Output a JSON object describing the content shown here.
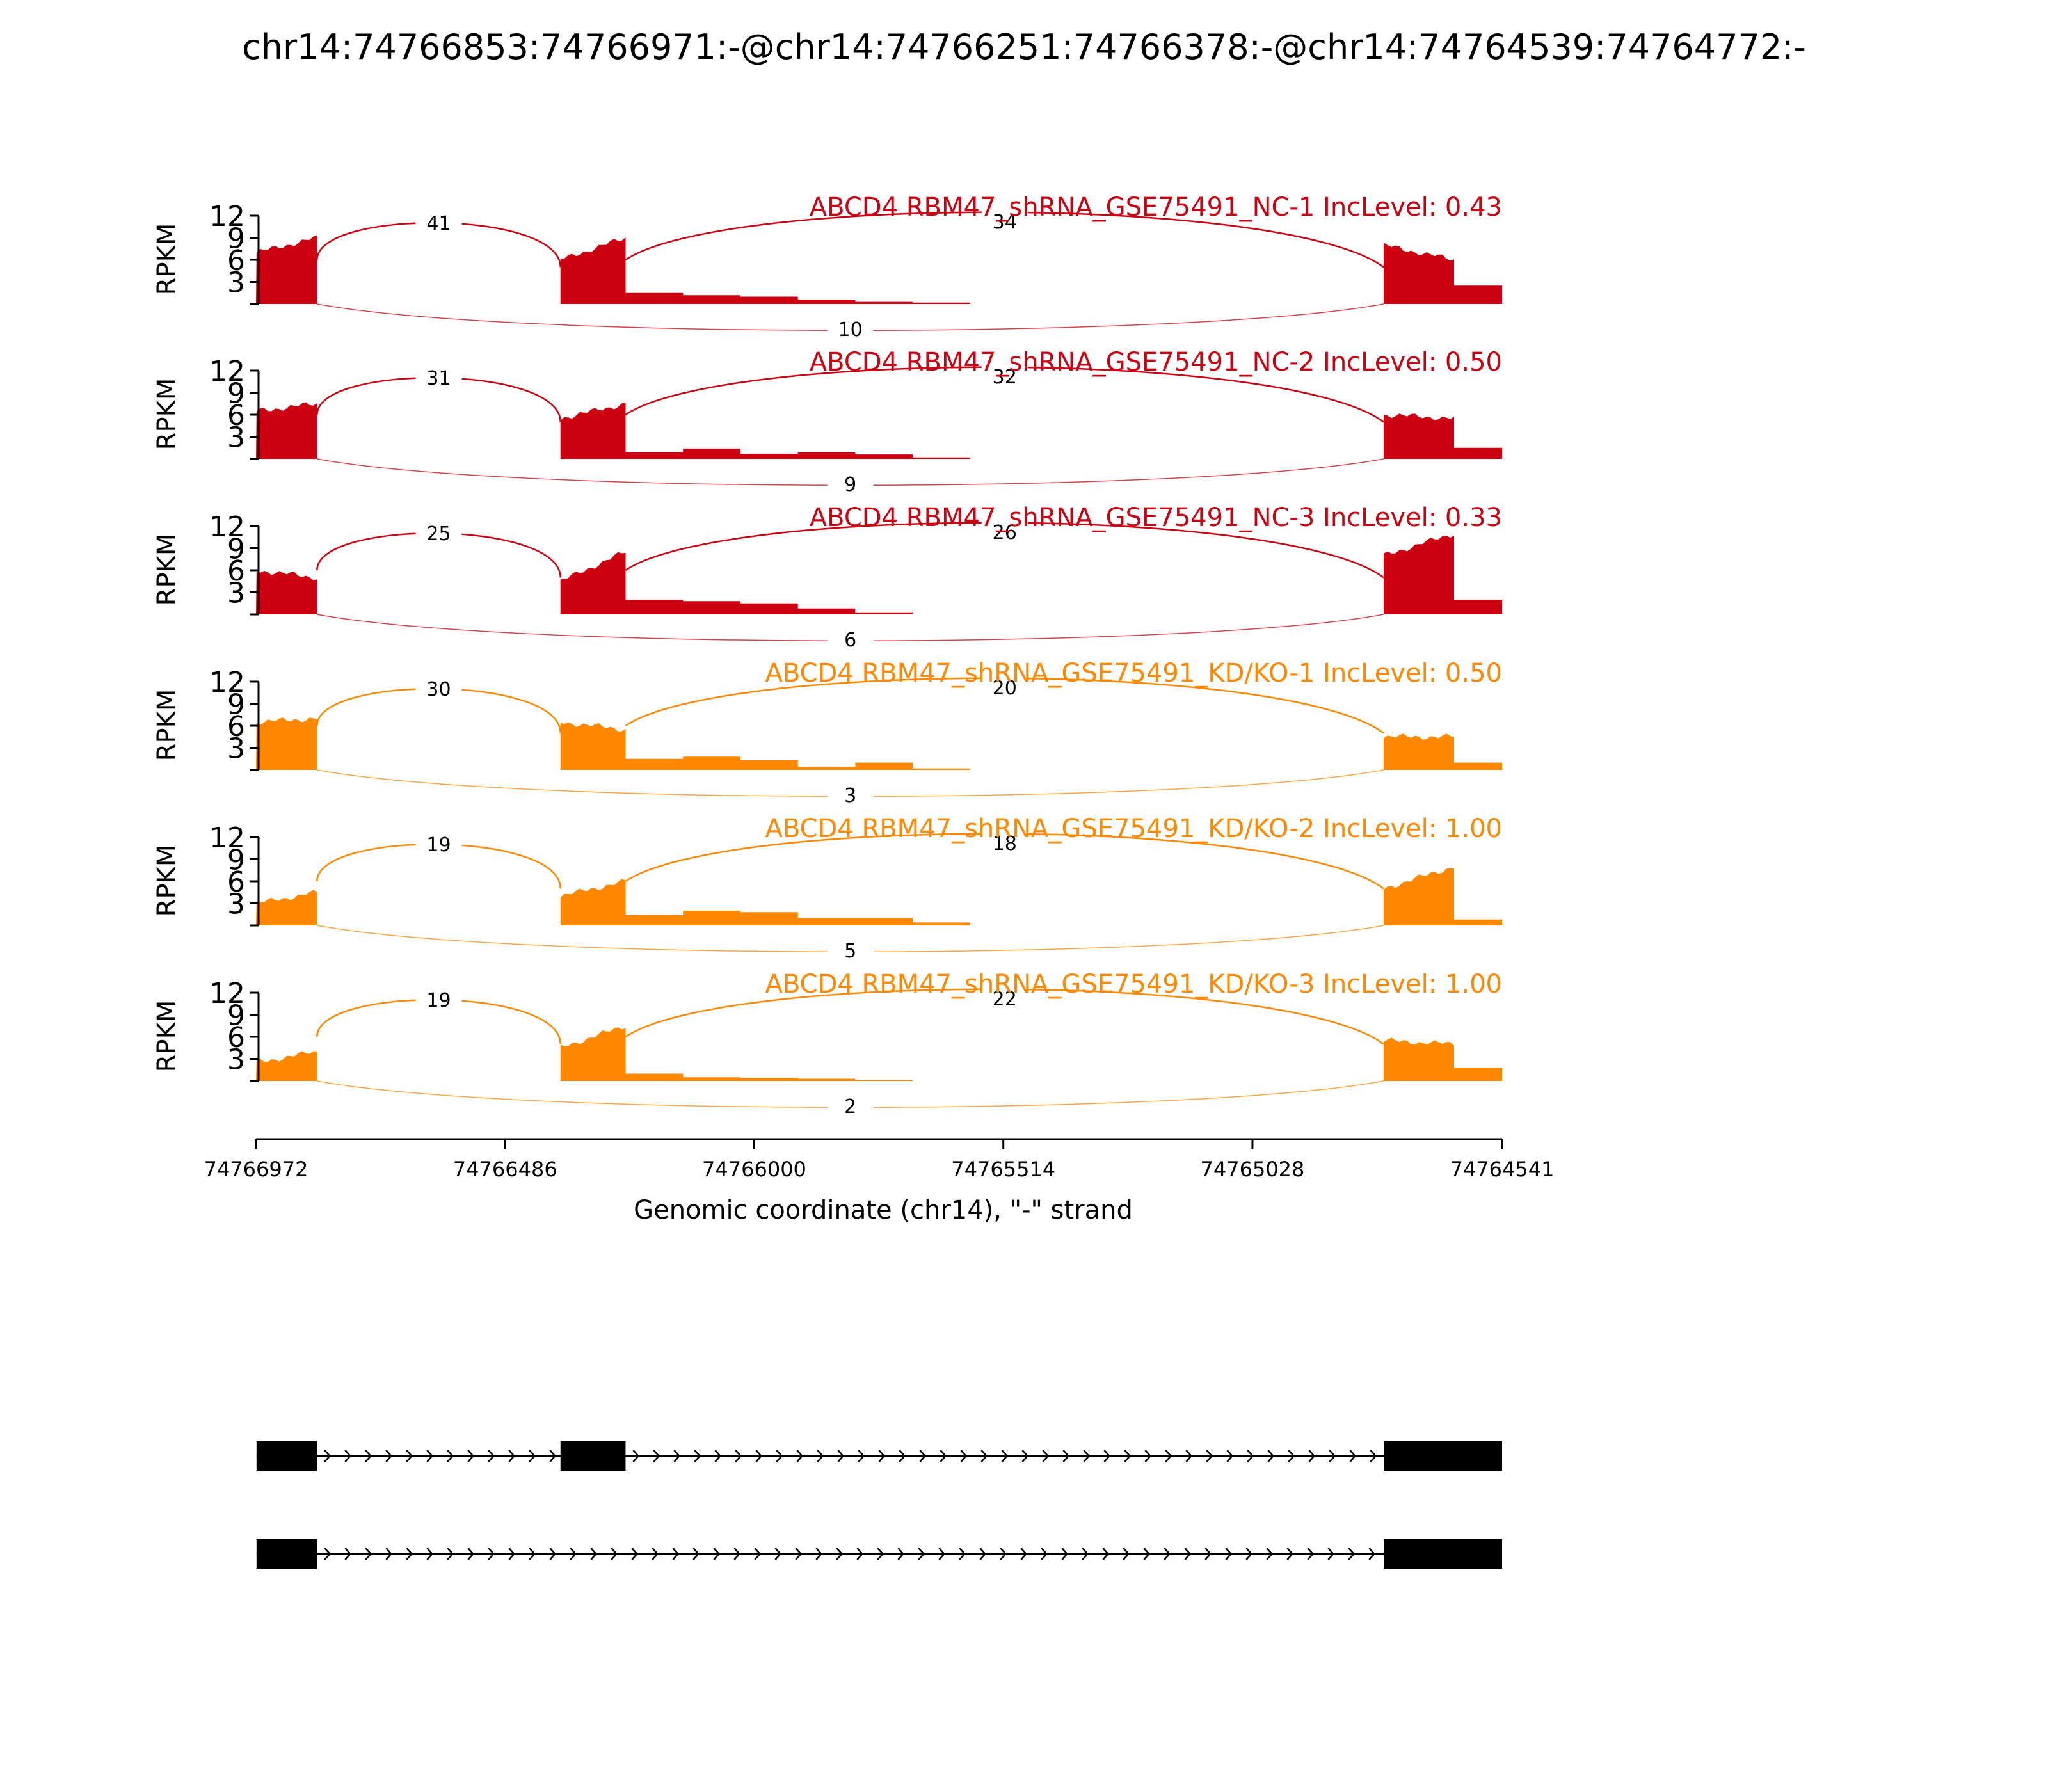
{
  "chart_data": {
    "type": "area",
    "title": "chr14:74766853:74766971:-@chr14:74766251:74766378:-@chr14:74764539:74764772:-",
    "ylabel": "RPKM",
    "xlabel": "Genomic coordinate (chr14), \"-\" strand",
    "ylim": [
      0,
      12
    ],
    "yticks": [
      "12",
      "9",
      "6",
      "3"
    ],
    "xticks": [
      "74766972",
      "74766486",
      "74766000",
      "74765514",
      "74765028",
      "74764541"
    ],
    "x_start": 74766972,
    "x_end": 74764541,
    "colors": {
      "NC": "#cc0011",
      "KD": "#ff8800"
    },
    "exons": [
      [
        74766971,
        74766853
      ],
      [
        74766378,
        74766251
      ],
      [
        74764772,
        74764541
      ]
    ],
    "samples": [
      {
        "label": "ABCD4 RBM47_shRNA_GSE75491_NC-1 IncLevel: 0.43",
        "group": "NC",
        "e1": [
          7.0,
          9.0
        ],
        "e2": [
          6.0,
          9.0
        ],
        "e3": [
          8.0,
          6.0
        ],
        "tail": 2.5,
        "intron2": [
          1.5,
          1.2,
          1.0,
          0.6,
          0.3,
          0.2
        ],
        "junctions": [
          "41",
          "34",
          "10"
        ]
      },
      {
        "label": "ABCD4 RBM47_shRNA_GSE75491_NC-2 IncLevel: 0.50",
        "group": "NC",
        "e1": [
          6.5,
          7.5
        ],
        "e2": [
          5.5,
          7.5
        ],
        "e3": [
          6.0,
          5.5
        ],
        "tail": 1.5,
        "intron2": [
          0.9,
          1.4,
          0.7,
          0.9,
          0.6,
          0.2
        ],
        "junctions": [
          "31",
          "32",
          "9"
        ]
      },
      {
        "label": "ABCD4 RBM47_shRNA_GSE75491_NC-3 IncLevel: 0.33",
        "group": "NC",
        "e1": [
          6.0,
          5.0
        ],
        "e2": [
          4.5,
          8.5
        ],
        "e3": [
          8.0,
          11.0
        ],
        "tail": 2.0,
        "intron2": [
          2.0,
          1.8,
          1.5,
          0.8,
          0.2,
          0.0
        ],
        "junctions": [
          "25",
          "26",
          "6"
        ]
      },
      {
        "label": "ABCD4 RBM47_shRNA_GSE75491_KD/KO-1 IncLevel: 0.50",
        "group": "KD",
        "e1": [
          6.5,
          7.0
        ],
        "e2": [
          6.5,
          5.5
        ],
        "e3": [
          4.5,
          4.5
        ],
        "tail": 1.0,
        "intron2": [
          1.5,
          1.8,
          1.3,
          0.4,
          1.0,
          0.2
        ],
        "junctions": [
          "30",
          "20",
          "3"
        ]
      },
      {
        "label": "ABCD4 RBM47_shRNA_GSE75491_KD/KO-2 IncLevel: 1.00",
        "group": "KD",
        "e1": [
          3.0,
          4.5
        ],
        "e2": [
          4.0,
          6.0
        ],
        "e3": [
          5.0,
          8.0
        ],
        "tail": 0.8,
        "intron2": [
          1.4,
          2.0,
          1.8,
          1.0,
          1.0,
          0.4
        ],
        "junctions": [
          "19",
          "18",
          "5"
        ]
      },
      {
        "label": "ABCD4 RBM47_shRNA_GSE75491_KD/KO-3 IncLevel: 1.00",
        "group": "KD",
        "e1": [
          2.5,
          4.0
        ],
        "e2": [
          4.5,
          7.5
        ],
        "e3": [
          5.5,
          5.0
        ],
        "tail": 1.8,
        "intron2": [
          1.0,
          0.5,
          0.4,
          0.3,
          0.1,
          0.0
        ],
        "junctions": [
          "19",
          "22",
          "2"
        ]
      }
    ],
    "isoforms": [
      {
        "exons": [
          [
            74766971,
            74766853
          ],
          [
            74766378,
            74766251
          ],
          [
            74764772,
            74764541
          ]
        ]
      },
      {
        "exons": [
          [
            74766971,
            74766853
          ],
          [
            74764772,
            74764541
          ]
        ]
      }
    ]
  }
}
